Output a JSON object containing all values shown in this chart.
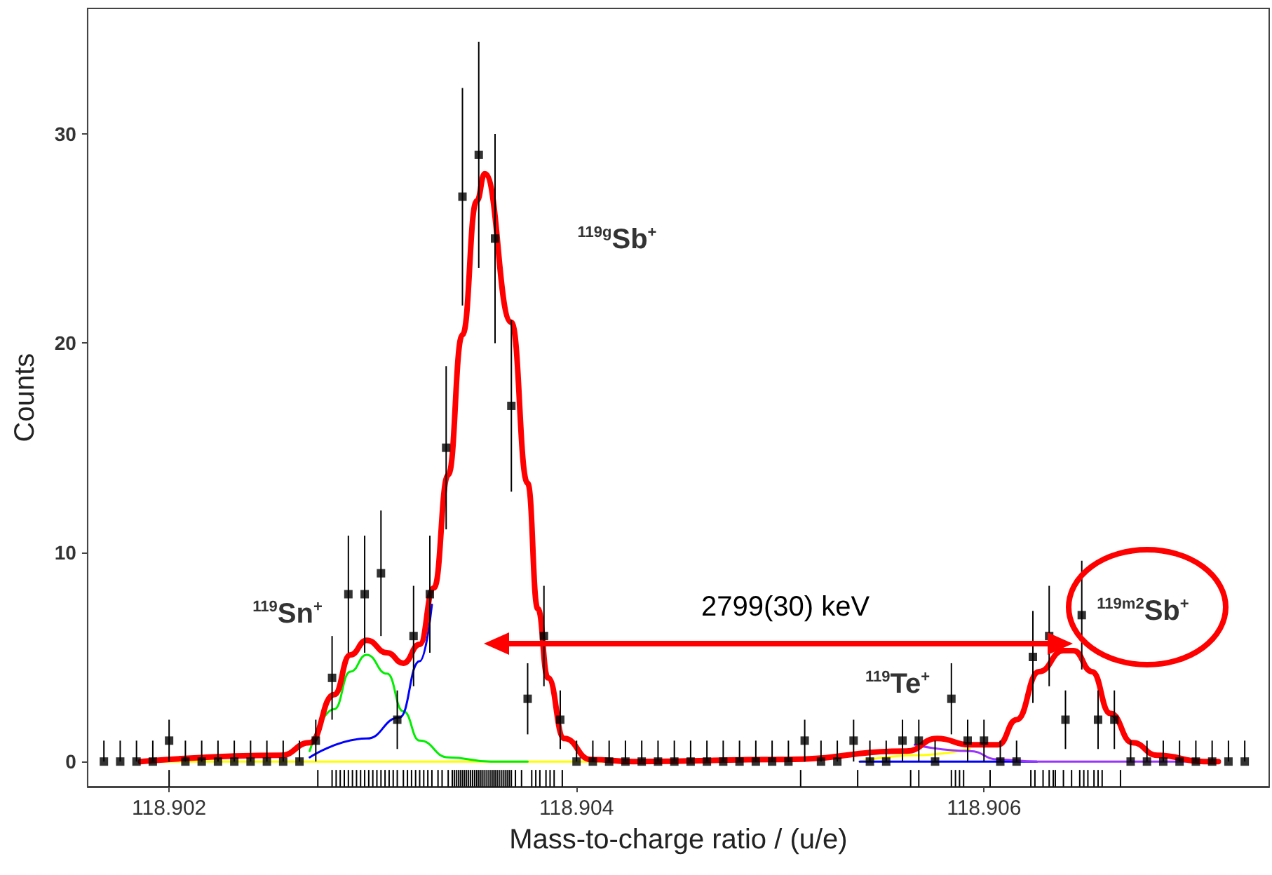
{
  "chart_data": {
    "type": "scatter",
    "xlabel": "Mass-to-charge ratio / (u/e)",
    "ylabel": "Counts",
    "xlim": [
      118.9016,
      118.9074
    ],
    "xticks": [
      118.902,
      118.904,
      118.906
    ],
    "ylim": [
      -1.2,
      36
    ],
    "yticks": [
      0,
      10,
      20,
      30
    ],
    "grid": false,
    "annotations": [
      "$^{119}$Sn$^{+}$",
      "$^{119g}$Sb$^{+}$",
      "$^{119}$Te$^{+}$",
      "$^{119m2}$Sb$^{+}$",
      "2799(30) keV"
    ],
    "series": [
      {
        "type": "bar",
        "color": "#000000",
        "x": [
          118.902,
          118.90273,
          118.9028,
          118.90282,
          118.90284,
          118.90286,
          118.90288,
          118.9029,
          118.90292,
          118.90294,
          118.90296,
          118.90298,
          118.903,
          118.90302,
          118.90304,
          118.90306,
          118.90308,
          118.9031,
          118.90312,
          118.90315,
          118.90317,
          118.90319,
          118.90321,
          118.90323,
          118.90325,
          118.90327,
          118.90329,
          118.90332,
          118.90334,
          118.90337,
          118.90339,
          118.9034,
          118.90341,
          118.90342,
          118.90343,
          118.90344,
          118.90345,
          118.90346,
          118.90347,
          118.90348,
          118.90349,
          118.9035,
          118.90351,
          118.90352,
          118.90353,
          118.90354,
          118.90355,
          118.90356,
          118.90357,
          118.90358,
          118.90359,
          118.9036,
          118.90361,
          118.90362,
          118.90363,
          118.90364,
          118.90365,
          118.90366,
          118.90367,
          118.90368,
          118.9037,
          118.90373,
          118.90378,
          118.9038,
          118.90382,
          118.90385,
          118.90387,
          118.90389,
          118.90393,
          118.9051,
          118.90538,
          118.90564,
          118.90568,
          118.90584,
          118.90586,
          118.90588,
          118.9059,
          118.90603,
          118.90623,
          118.90625,
          118.90629,
          118.90632,
          118.90634,
          118.90635,
          118.90639,
          118.90643,
          118.90647,
          118.90649,
          118.90651,
          118.90654,
          118.90656,
          118.90658,
          118.90667
        ],
        "base": [
          -1.2,
          -1.2,
          -1.2,
          -1.2,
          -1.2,
          -1.2,
          -1.2,
          -1.2,
          -1.2,
          -1.2,
          -1.2,
          -1.2,
          -1.2,
          -1.2,
          -1.2,
          -1.2,
          -1.2,
          -1.2,
          -1.2,
          -1.2,
          -1.2,
          -1.2,
          -1.2,
          -1.2,
          -1.2,
          -1.2,
          -1.2,
          -1.2,
          -1.2,
          -1.2,
          -1.2,
          -1.2,
          -1.2,
          -1.2,
          -1.2,
          -1.2,
          -1.2,
          -1.2,
          -1.2,
          -1.2,
          -1.2,
          -1.2,
          -1.2,
          -1.2,
          -1.2,
          -1.2,
          -1.2,
          -1.2,
          -1.2,
          -1.2,
          -1.2,
          -1.2,
          -1.2,
          -1.2,
          -1.2,
          -1.2,
          -1.2,
          -1.2,
          -1.2,
          -1.2,
          -1.2,
          -1.2,
          -1.2,
          -1.2,
          -1.2,
          -1.2,
          -1.2,
          -1.2,
          -1.2,
          -1.2,
          -1.2,
          -1.2,
          -1.2,
          -1.2,
          -1.2,
          -1.2,
          -1.2,
          -1.2,
          -1.2,
          -1.2,
          -1.2,
          -1.2,
          -1.2,
          -1.2,
          -1.2,
          -1.2,
          -1.2,
          -1.2,
          -1.2,
          -1.2,
          -1.2,
          -1.2,
          -1.2
        ],
        "values": [
          0.8,
          0.8,
          0.8,
          0.8,
          0.8,
          0.8,
          0.8,
          0.8,
          0.8,
          0.8,
          0.8,
          0.8,
          0.8,
          0.8,
          0.8,
          0.8,
          0.8,
          0.8,
          0.8,
          0.8,
          0.8,
          0.8,
          0.8,
          0.8,
          0.8,
          0.8,
          0.8,
          0.8,
          0.8,
          0.8,
          0.8,
          0.8,
          0.8,
          0.8,
          0.8,
          0.8,
          0.8,
          0.8,
          0.8,
          0.8,
          0.8,
          0.8,
          0.8,
          0.8,
          0.8,
          0.8,
          0.8,
          0.8,
          0.8,
          0.8,
          0.8,
          0.8,
          0.8,
          0.8,
          0.8,
          0.8,
          0.8,
          0.8,
          0.8,
          0.8,
          0.8,
          0.8,
          0.8,
          0.8,
          0.8,
          0.8,
          0.8,
          0.8,
          0.8,
          0.8,
          0.8,
          0.8,
          0.8,
          0.8,
          0.8,
          0.8,
          0.8,
          0.8,
          0.8,
          0.8,
          0.8,
          0.8,
          0.8,
          0.8,
          0.8,
          0.8,
          0.8,
          0.8,
          0.8,
          0.8,
          0.8,
          0.8,
          0.8
        ]
      },
      {
        "color": "#000000",
        "marker": "square",
        "x": [
          118.90168,
          118.90176,
          118.90184,
          118.90192,
          118.902,
          118.90208,
          118.90216,
          118.90224,
          118.90232,
          118.9024,
          118.90248,
          118.90256,
          118.90264,
          118.90272,
          118.9028,
          118.90288,
          118.90296,
          118.90304,
          118.90312,
          118.9032,
          118.90328,
          118.90336,
          118.90344,
          118.90352,
          118.9036,
          118.90368,
          118.90376,
          118.90384,
          118.90392,
          118.904,
          118.90408,
          118.90416,
          118.90424,
          118.90432,
          118.9044,
          118.90448,
          118.90456,
          118.90464,
          118.90472,
          118.9048,
          118.90488,
          118.90496,
          118.90504,
          118.90512,
          118.9052,
          118.90528,
          118.90536,
          118.90544,
          118.90552,
          118.9056,
          118.90568,
          118.90576,
          118.90584,
          118.90592,
          118.906,
          118.90608,
          118.90616,
          118.90624,
          118.90632,
          118.9064,
          118.90648,
          118.90656,
          118.90664,
          118.90672,
          118.9068,
          118.90688,
          118.90696,
          118.90704,
          118.90712,
          118.9072,
          118.90728
        ],
        "values": [
          0,
          0,
          0,
          0,
          1,
          0,
          0,
          0,
          0,
          0,
          0,
          0,
          0,
          1,
          4,
          8,
          8,
          9,
          2,
          6,
          8,
          15,
          27,
          29,
          25,
          17,
          3,
          6,
          2,
          0,
          0,
          0,
          0,
          0,
          0,
          0,
          0,
          0,
          0,
          0,
          0,
          0,
          0,
          1,
          0,
          0,
          1,
          0,
          0,
          1,
          1,
          0,
          3,
          1,
          1,
          0,
          0,
          5,
          6,
          2,
          7,
          2,
          2,
          0,
          0,
          0,
          0,
          0,
          0,
          0,
          0
        ],
        "errors": [
          [
            0,
            1
          ],
          [
            0,
            1
          ],
          [
            0,
            1
          ],
          [
            0,
            1
          ],
          1,
          [
            0,
            1
          ],
          [
            0,
            1
          ],
          [
            0,
            1
          ],
          [
            0,
            1
          ],
          [
            0,
            1
          ],
          [
            0,
            1
          ],
          [
            0,
            1
          ],
          [
            0,
            1
          ],
          1,
          2,
          2.8,
          2.8,
          3,
          1.4,
          2.4,
          2.8,
          3.9,
          5.2,
          5.4,
          5,
          4.1,
          1.7,
          2.4,
          1.4,
          [
            0,
            1
          ],
          [
            0,
            1
          ],
          [
            0,
            1
          ],
          [
            0,
            1
          ],
          [
            0,
            1
          ],
          [
            0,
            1
          ],
          [
            0,
            1
          ],
          [
            0,
            1
          ],
          [
            0,
            1
          ],
          [
            0,
            1
          ],
          [
            0,
            1
          ],
          [
            0,
            1
          ],
          [
            0,
            1
          ],
          [
            0,
            1
          ],
          1,
          [
            0,
            1
          ],
          [
            0,
            1
          ],
          1,
          [
            0,
            1
          ],
          [
            0,
            1
          ],
          1,
          1,
          [
            0,
            1
          ],
          1.7,
          1,
          1,
          [
            0,
            1
          ],
          [
            0,
            1
          ],
          2.2,
          2.4,
          1.4,
          2.6,
          1.4,
          1.4,
          [
            0,
            1
          ],
          [
            0,
            1
          ],
          [
            0,
            1
          ],
          [
            0,
            1
          ],
          [
            0,
            1
          ],
          [
            0,
            1
          ],
          [
            0,
            1
          ],
          [
            0,
            1
          ]
        ]
      },
      {
        "type": "line",
        "color": "#ffff00",
        "marker": "none",
        "x": [
          118.90186,
          118.90428,
          118.9048,
          118.90539,
          118.90566,
          118.90593
        ],
        "values": [
          0,
          0,
          null,
          0,
          0.3,
          0.6
        ]
      },
      {
        "type": "line",
        "color": "#00ee00",
        "marker": "none",
        "x": [
          118.90269,
          118.90281,
          118.90289,
          118.90297,
          118.90307,
          118.90315,
          118.90323,
          118.90337,
          118.90358,
          118.90376
        ],
        "values": [
          0.5,
          2.5,
          4.3,
          5.1,
          4.2,
          2.4,
          1,
          0.2,
          0,
          0
        ]
      },
      {
        "type": "line",
        "color": "#0000ff",
        "marker": "none",
        "x": [
          118.90269,
          118.90297,
          118.90313,
          118.90323,
          118.90329,
          118.9048,
          118.90539,
          118.90626
        ],
        "values": [
          0.2,
          1.1,
          2.1,
          4.8,
          7.5,
          null,
          0,
          0
        ]
      },
      {
        "type": "line",
        "color": "#9933ff",
        "marker": "none",
        "x": [
          118.90566,
          118.90593,
          118.90607,
          118.90626,
          118.90715
        ],
        "values": [
          0.8,
          0.5,
          0.1,
          0,
          0
        ]
      },
      {
        "type": "line",
        "color": "#ff0000",
        "marker": "none",
        "x": [
          118.90186,
          118.90255,
          118.90269,
          118.90281,
          118.90289,
          118.90297,
          118.90307,
          118.90315,
          118.90323,
          118.9033,
          118.90337,
          118.90344,
          118.90351,
          118.90355,
          118.90368,
          118.90376,
          118.90381,
          118.90386,
          118.90394,
          118.90407,
          118.90428,
          118.90502,
          118.90562,
          118.90577,
          118.90593,
          118.90607,
          118.90616,
          118.90627,
          118.90639,
          118.90644,
          118.90653,
          118.90662,
          118.90673,
          118.90685,
          118.90708,
          118.90715
        ],
        "values": [
          0,
          0.3,
          0.9,
          3.2,
          5.1,
          5.8,
          5.2,
          4.7,
          5.6,
          8.3,
          13.7,
          20.4,
          26.8,
          28.1,
          21,
          13.3,
          7.3,
          4,
          1.1,
          0.1,
          0,
          0.1,
          0.5,
          1.1,
          0.8,
          0.8,
          2,
          4.3,
          5.3,
          5.3,
          4.3,
          2.3,
          0.9,
          0.3,
          0,
          0
        ]
      }
    ]
  }
}
